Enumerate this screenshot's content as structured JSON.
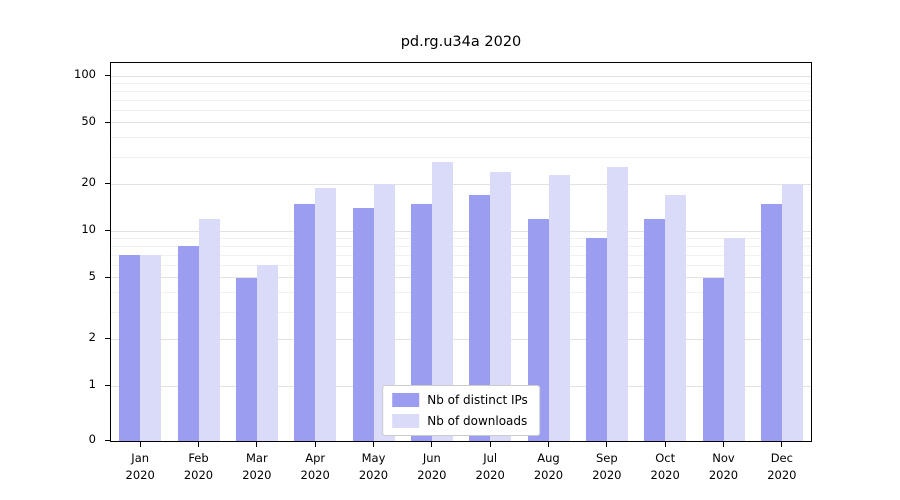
{
  "title": "pd.rg.u34a 2020",
  "chart_data": {
    "type": "bar",
    "title": "pd.rg.u34a 2020",
    "categories": [
      "Jan",
      "Feb",
      "Mar",
      "Apr",
      "May",
      "Jun",
      "Jul",
      "Aug",
      "Sep",
      "Oct",
      "Nov",
      "Dec"
    ],
    "year_label": "2020",
    "series": [
      {
        "name": "Nb of distinct IPs",
        "color": "#9b9ef0",
        "values": [
          7,
          8,
          5,
          15,
          14,
          15,
          17,
          12,
          9,
          12,
          5,
          15
        ]
      },
      {
        "name": "Nb of downloads",
        "color": "#d9dbf9",
        "values": [
          7,
          12,
          6,
          19,
          20,
          28,
          24,
          23,
          26,
          17,
          9,
          20
        ]
      }
    ],
    "xlabel": "",
    "ylabel": "",
    "yscale": "log",
    "ylim": [
      0,
      100
    ],
    "y_ticks": [
      0,
      1,
      2,
      5,
      10,
      20,
      50,
      100
    ],
    "y_minor_ticks": [
      3,
      4,
      6,
      7,
      8,
      9,
      30,
      40,
      60,
      70,
      80,
      90
    ],
    "grid": true,
    "legend_position": "bottom-center"
  }
}
